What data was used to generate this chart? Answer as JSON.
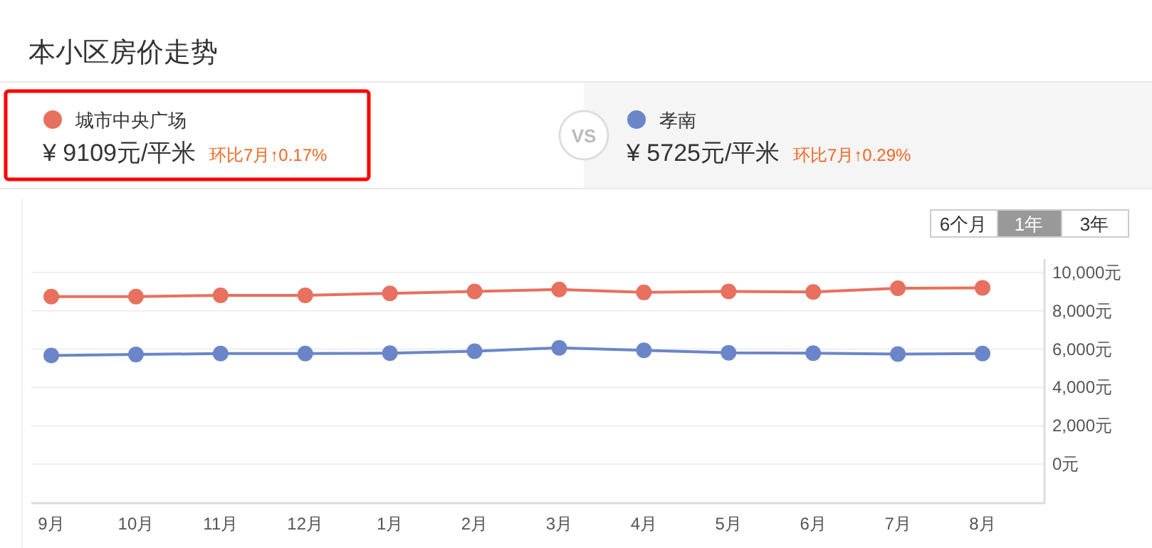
{
  "chart_data": {
    "type": "line",
    "title": "本小区房价走势",
    "categories": [
      "9月",
      "10月",
      "11月",
      "12月",
      "1月",
      "2月",
      "3月",
      "4月",
      "5月",
      "6月",
      "7月",
      "8月"
    ],
    "series": [
      {
        "name": "城市中央广场",
        "color": "#e8705e",
        "values": [
          8740,
          8740,
          8810,
          8810,
          8910,
          9010,
          9110,
          8960,
          9010,
          8980,
          9180,
          9200
        ]
      },
      {
        "name": "孝南",
        "color": "#6b86c8",
        "values": [
          5670,
          5720,
          5770,
          5770,
          5790,
          5890,
          6070,
          5940,
          5810,
          5790,
          5740,
          5770
        ]
      }
    ],
    "ylim": [
      -2000,
      10700
    ],
    "yticks": [
      {
        "value": 0,
        "label": "0元"
      },
      {
        "value": 2000,
        "label": "2,000元"
      },
      {
        "value": 4000,
        "label": "4,000元"
      },
      {
        "value": 6000,
        "label": "6,000元"
      },
      {
        "value": 8000,
        "label": "8,000元"
      },
      {
        "value": 10000,
        "label": "10,000元"
      }
    ],
    "grid": "y",
    "legend": "top",
    "marker": "circle",
    "line_style": "solid",
    "annotations": [
      "¥ 9109元/平米",
      "环比7月↑0.17%",
      "VS",
      "¥ 5725元/平米",
      "环比7月↑0.29%",
      "6个月",
      "1年",
      "3年"
    ]
  }
}
